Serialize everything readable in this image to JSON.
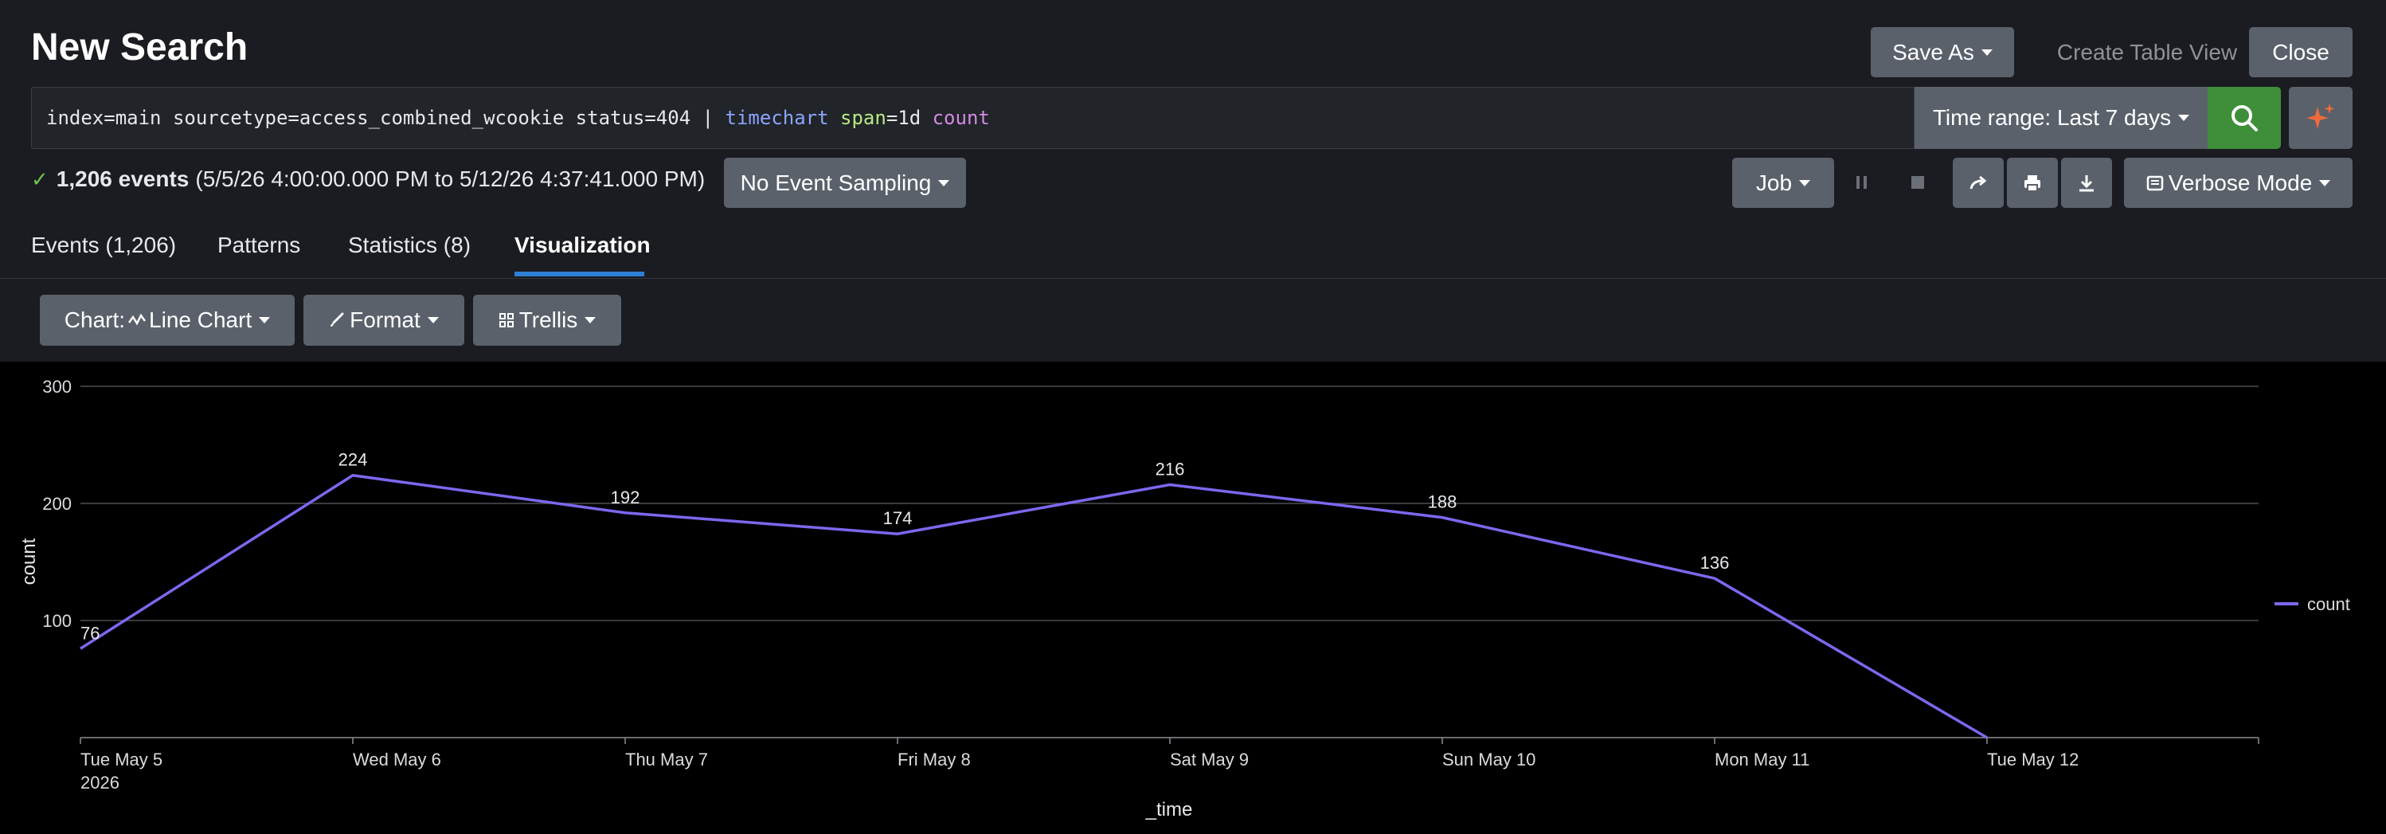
{
  "page": {
    "title": "New Search"
  },
  "header": {
    "save_as": "Save As",
    "create_table_view": "Create Table View",
    "close": "Close"
  },
  "search": {
    "query_parts": [
      {
        "text": "index=main sourcetype=access_combined_wcookie status=404 | ",
        "kind": "plain"
      },
      {
        "text": "timechart",
        "kind": "cmd"
      },
      {
        "text": " ",
        "kind": "plain"
      },
      {
        "text": "span",
        "kind": "arg"
      },
      {
        "text": "=1d ",
        "kind": "plain"
      },
      {
        "text": "count",
        "kind": "fn"
      }
    ],
    "time_range": "Time range: Last 7 days"
  },
  "status": {
    "events_count": "1,206 events",
    "time_span": "(5/5/26 4:00:00.000 PM to 5/12/26 4:37:41.000 PM)",
    "sampling": "No Event Sampling",
    "job": "Job",
    "mode": "Verbose Mode"
  },
  "tabs": [
    {
      "label": "Events (1,206)",
      "active": false
    },
    {
      "label": "Patterns",
      "active": false
    },
    {
      "label": "Statistics (8)",
      "active": false
    },
    {
      "label": "Visualization",
      "active": true
    }
  ],
  "viz_toolbar": {
    "chart": "Chart: ",
    "chart_type": "Line Chart",
    "format": "Format",
    "trellis": "Trellis"
  },
  "colors": {
    "accent_green": "#3e8e3a",
    "tab_underline": "#2f7fd4",
    "series": "#7b68ee"
  },
  "chart_data": {
    "type": "line",
    "x": [
      "Tue May 5",
      "Wed May 6",
      "Thu May 7",
      "Fri May 8",
      "Sat May 9",
      "Sun May 10",
      "Mon May 11",
      "Tue May 12"
    ],
    "x_sublabel": "2026",
    "series": [
      {
        "name": "count",
        "values": [
          76,
          224,
          192,
          174,
          216,
          188,
          136,
          0
        ]
      }
    ],
    "data_labels": [
      "76",
      "224",
      "192",
      "174",
      "216",
      "188",
      "136",
      ""
    ],
    "yticks": [
      100,
      200,
      300
    ],
    "ylim": [
      0,
      300
    ],
    "xlabel": "_time",
    "ylabel": "count",
    "grid": true,
    "legend": "right"
  }
}
